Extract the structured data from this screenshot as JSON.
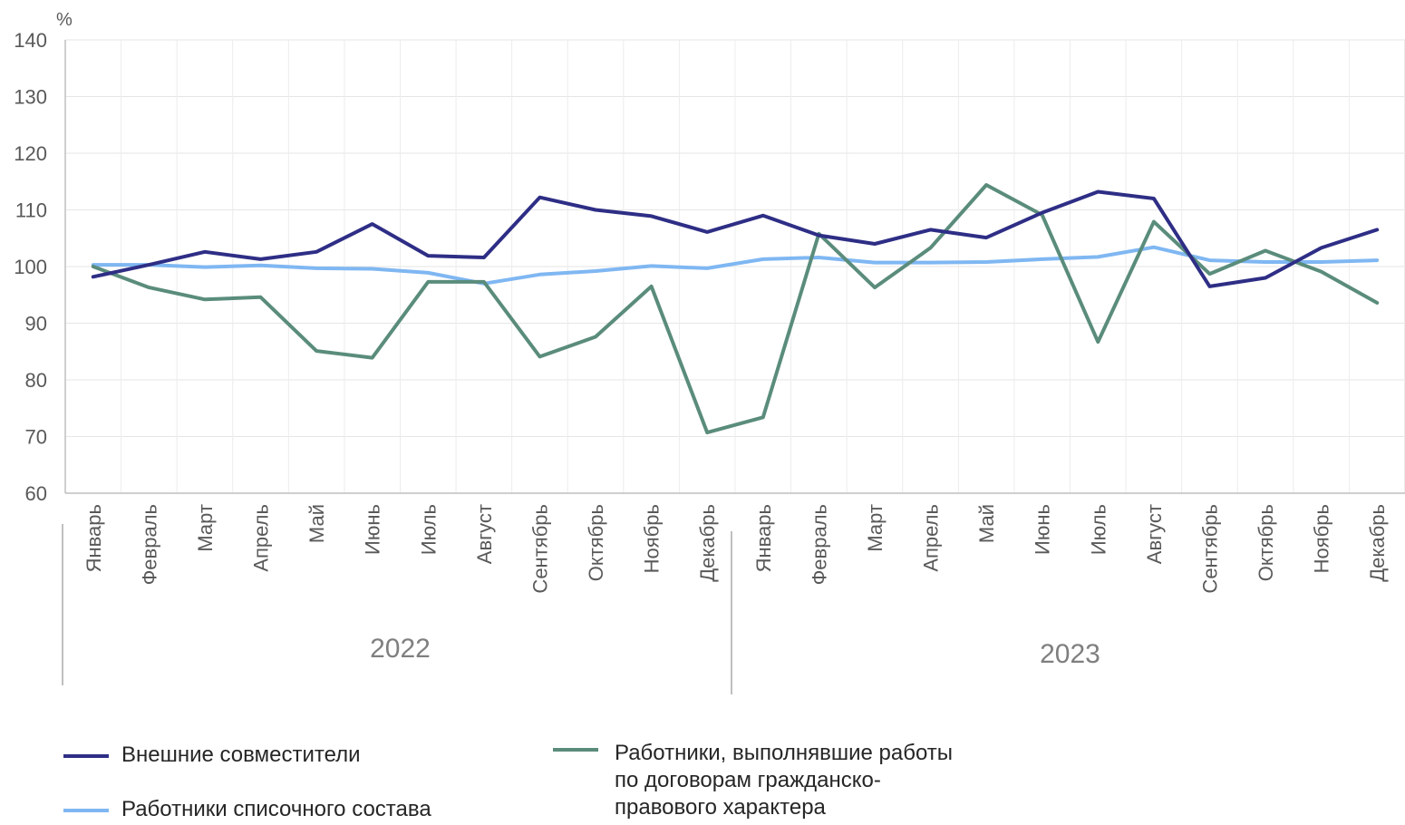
{
  "chart_data": {
    "type": "line",
    "unit_label": "%",
    "ylim": [
      60,
      140
    ],
    "yticks": [
      60,
      70,
      80,
      90,
      100,
      110,
      120,
      130,
      140
    ],
    "grid": true,
    "legend_position": "bottom",
    "categories": [
      "Январь",
      "Февраль",
      "Март",
      "Апрель",
      "Май",
      "Июнь",
      "Июль",
      "Август",
      "Сентябрь",
      "Октябрь",
      "Ноябрь",
      "Декабрь",
      "Январь",
      "Февраль",
      "Март",
      "Апрель",
      "Май",
      "Июнь",
      "Июль",
      "Август",
      "Сентябрь",
      "Октябрь",
      "Ноябрь",
      "Декабрь"
    ],
    "years": [
      {
        "label": "2022",
        "span": [
          0,
          11
        ]
      },
      {
        "label": "2023",
        "span": [
          12,
          23
        ]
      }
    ],
    "series": [
      {
        "name": "Внешние совместители",
        "color": "#2e2e86",
        "values": [
          98.2,
          100.3,
          102.6,
          101.3,
          102.6,
          107.5,
          101.9,
          101.6,
          112.2,
          110.0,
          108.9,
          106.1,
          109.0,
          105.5,
          104.0,
          106.5,
          105.1,
          109.5,
          113.2,
          112.0,
          96.5,
          98.0,
          103.3,
          106.5
        ]
      },
      {
        "name": "Работники списочного состава",
        "color": "#7fb7f2",
        "values": [
          100.3,
          100.3,
          99.9,
          100.2,
          99.7,
          99.6,
          98.9,
          97.0,
          98.6,
          99.2,
          100.1,
          99.7,
          101.3,
          101.6,
          100.7,
          100.7,
          100.8,
          101.3,
          101.7,
          103.4,
          101.1,
          100.8,
          100.8,
          101.1
        ]
      },
      {
        "name": "Работники, выполнявшие работы по договорам гражданско-правового характера",
        "color": "#5a8c7c",
        "values": [
          100.0,
          96.3,
          94.2,
          94.6,
          85.1,
          83.9,
          97.3,
          97.3,
          84.1,
          87.6,
          96.5,
          70.7,
          73.4,
          105.8,
          96.3,
          103.3,
          114.4,
          109.1,
          86.7,
          107.9,
          98.7,
          102.8,
          99.1,
          93.6
        ]
      }
    ]
  },
  "legend": {
    "item1": "Внешние совместители",
    "item2": "Работники списочного состава",
    "item3_lines": [
      "Работники, выполнявшие работы",
      "по договорам гражданско-",
      "правового характера"
    ]
  }
}
